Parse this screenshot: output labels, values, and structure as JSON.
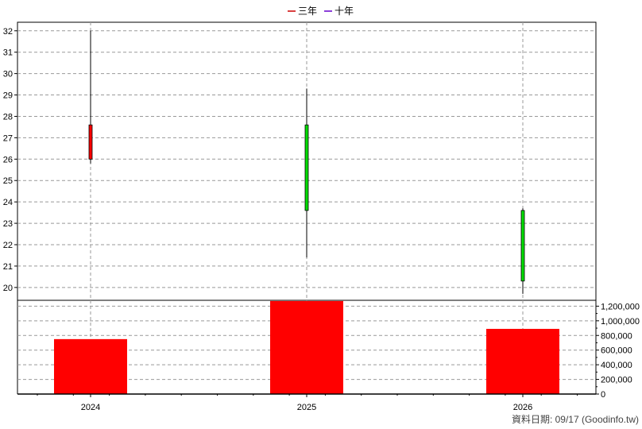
{
  "chart_data": [
    {
      "type": "candlestick",
      "categories": [
        "2024",
        "2025",
        "2026"
      ],
      "ylim": [
        19.4,
        32.4
      ],
      "y_ticks": [
        "32",
        "31",
        "30",
        "29",
        "28",
        "27",
        "26",
        "25",
        "24",
        "23",
        "22",
        "21",
        "20"
      ],
      "candles": [
        {
          "x": "2024",
          "open": 26.0,
          "close": 27.6,
          "high": 32.0,
          "low": 25.8,
          "color": "#ff0000"
        },
        {
          "x": "2025",
          "open": 27.6,
          "close": 23.6,
          "high": 29.3,
          "low": 21.4,
          "color": "#00dd00"
        },
        {
          "x": "2026",
          "open": 23.6,
          "close": 20.3,
          "high": 23.7,
          "low": 19.7,
          "color": "#00dd00"
        }
      ],
      "legend": [
        {
          "label": "三年",
          "color": "#cc0000"
        },
        {
          "label": "十年",
          "color": "#6600cc"
        }
      ],
      "grid": true
    },
    {
      "type": "bar",
      "categories": [
        "2024",
        "2025",
        "2026"
      ],
      "values": [
        750000,
        1270000,
        890000
      ],
      "color": "#ff0000",
      "ylim": [
        0,
        1280000
      ],
      "y_ticks": [
        "1,200,000",
        "1,000,000",
        "800,000",
        "600,000",
        "400,000",
        "200,000",
        "0"
      ],
      "grid": true
    }
  ],
  "footer": "資料日期: 09/17  (Goodinfo.tw)"
}
